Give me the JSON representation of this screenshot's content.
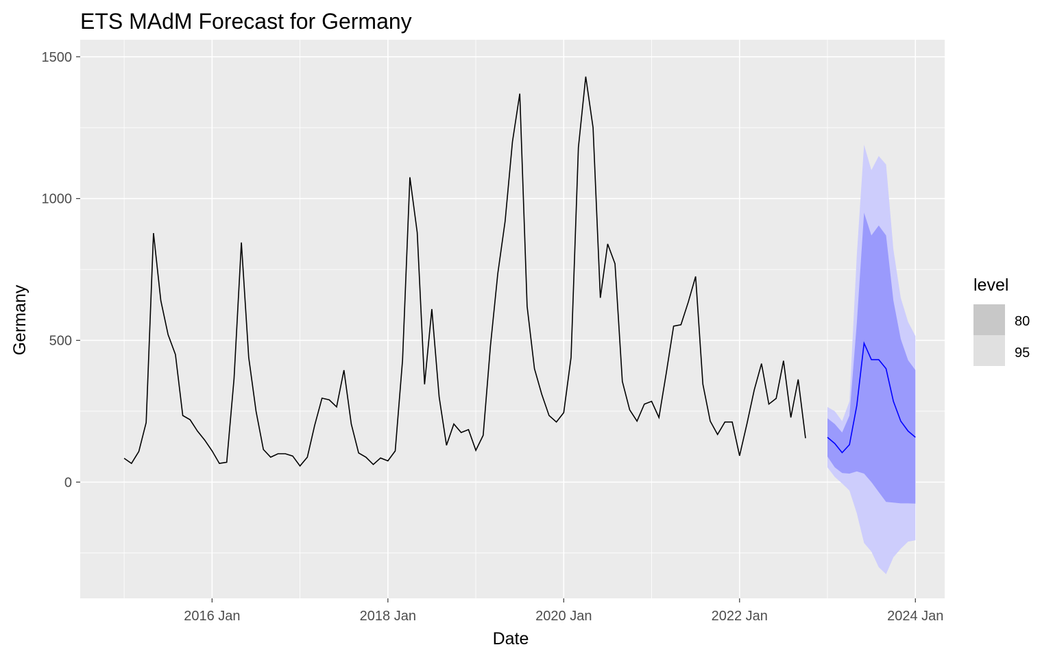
{
  "chart_data": {
    "type": "line",
    "title": "ETS MAdM Forecast for Germany",
    "xlabel": "Date",
    "ylabel": "Germany",
    "x_ticks": [
      "2016 Jan",
      "2018 Jan",
      "2020 Jan",
      "2022 Jan",
      "2024 Jan"
    ],
    "y_ticks": [
      "0",
      "500",
      "1000",
      "1500"
    ],
    "ylim": [
      -410,
      1560
    ],
    "xlim": [
      "2014-07",
      "2024-05"
    ],
    "grid": true,
    "legend": {
      "title": "level",
      "position": "right",
      "entries": [
        {
          "label": "80",
          "swatch": "#c8c8c8"
        },
        {
          "label": "95",
          "swatch": "#e0e0e0"
        }
      ]
    },
    "colors": {
      "panel": "#ebebeb",
      "grid": "#ffffff",
      "history_line": "#000000",
      "forecast_line": "#0000ff",
      "band80": "#9a9afc",
      "band95": "#cdcdfc"
    },
    "history": {
      "start": "2015-01",
      "values": [
        84,
        66,
        108,
        210,
        878,
        640,
        520,
        450,
        235,
        220,
        180,
        148,
        110,
        66,
        70,
        365,
        845,
        440,
        250,
        115,
        88,
        100,
        100,
        92,
        57,
        88,
        200,
        296,
        290,
        265,
        395,
        205,
        103,
        88,
        62,
        85,
        75,
        110,
        430,
        1075,
        880,
        345,
        610,
        300,
        130,
        205,
        175,
        185,
        112,
        165,
        480,
        735,
        920,
        1200,
        1370,
        620,
        400,
        310,
        235,
        212,
        245,
        440,
        1180,
        1430,
        1250,
        650,
        840,
        770,
        355,
        255,
        215,
        275,
        285,
        228,
        385,
        550,
        555,
        635,
        725,
        345,
        215,
        168,
        212,
        212,
        93,
        205,
        325,
        418,
        275,
        295,
        428,
        228,
        362,
        155
      ]
    },
    "forecast": {
      "start": "2023-01",
      "mean": [
        158,
        136,
        104,
        132,
        270,
        490,
        432,
        432,
        400,
        285,
        215,
        180,
        158
      ],
      "lo80": [
        90,
        52,
        32,
        30,
        38,
        30,
        0,
        -35,
        -70,
        -72,
        -75,
        -75,
        -76
      ],
      "hi80": [
        225,
        205,
        175,
        235,
        560,
        950,
        870,
        905,
        870,
        640,
        505,
        430,
        395
      ],
      "lo95": [
        52,
        18,
        -5,
        -30,
        -110,
        -215,
        -245,
        -300,
        -325,
        -265,
        -235,
        -210,
        -205
      ],
      "hi95": [
        265,
        250,
        215,
        285,
        800,
        1190,
        1100,
        1150,
        1120,
        820,
        650,
        565,
        515
      ]
    }
  }
}
